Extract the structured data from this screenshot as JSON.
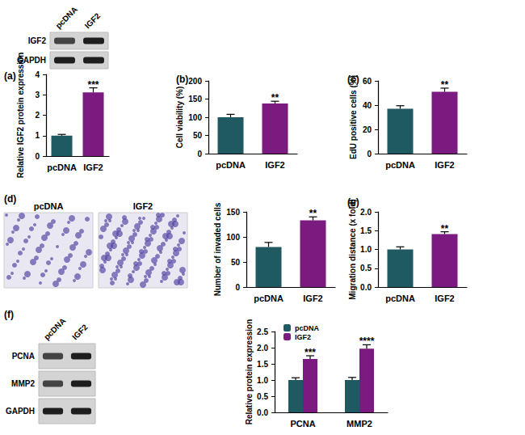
{
  "chart_data": [
    {
      "type": "bar",
      "title": "(a)",
      "ylabel": "Relative IGF2 protein expression",
      "categories": [
        "pcDNA",
        "IGF2"
      ],
      "values": [
        1.0,
        3.12
      ],
      "errors": [
        0.06,
        0.22
      ],
      "colors": [
        "#1f5a63",
        "#7b1b80"
      ],
      "ylim": [
        0,
        4
      ],
      "yticks": [
        0,
        1,
        2,
        3,
        4
      ],
      "annotations": [
        {
          "x": "IGF2",
          "text": "***"
        }
      ],
      "grid": false
    },
    {
      "type": "bar",
      "title": "(b)",
      "ylabel": "Cell viability (%)",
      "categories": [
        "pcDNA",
        "IGF2"
      ],
      "values": [
        100,
        138
      ],
      "errors": [
        8,
        6
      ],
      "colors": [
        "#1f5a63",
        "#7b1b80"
      ],
      "ylim": [
        0,
        200
      ],
      "yticks": [
        0,
        50,
        100,
        150,
        200
      ],
      "annotations": [
        {
          "x": "IGF2",
          "text": "**"
        }
      ],
      "grid": false
    },
    {
      "type": "bar",
      "title": "(c)",
      "ylabel": "EdU positive cells (%)",
      "categories": [
        "pcDNA",
        "IGF2"
      ],
      "values": [
        37,
        51
      ],
      "errors": [
        2.5,
        3
      ],
      "colors": [
        "#1f5a63",
        "#7b1b80"
      ],
      "ylim": [
        0,
        60
      ],
      "yticks": [
        0,
        20,
        40,
        60
      ],
      "annotations": [
        {
          "x": "IGF2",
          "text": "**"
        }
      ],
      "grid": false
    },
    {
      "type": "bar",
      "title": "(d)",
      "ylabel": "Number of invaded cells",
      "categories": [
        "pcDNA",
        "IGF2"
      ],
      "values": [
        80,
        133
      ],
      "errors": [
        9,
        7
      ],
      "colors": [
        "#1f5a63",
        "#7b1b80"
      ],
      "ylim": [
        0,
        150
      ],
      "yticks": [
        0,
        50,
        100,
        150
      ],
      "annotations": [
        {
          "x": "IGF2",
          "text": "**"
        }
      ],
      "grid": false
    },
    {
      "type": "bar",
      "title": "(e)",
      "ylabel": "Migration distance (x fold)",
      "categories": [
        "pcDNA",
        "IGF2"
      ],
      "values": [
        1.0,
        1.41
      ],
      "errors": [
        0.07,
        0.06
      ],
      "colors": [
        "#1f5a63",
        "#7b1b80"
      ],
      "ylim": [
        0,
        2
      ],
      "yticks": [
        {
          "value": 0,
          "label": "0.0"
        },
        0.5,
        {
          "value": 1,
          "label": "1.0"
        },
        1.5,
        {
          "value": 2,
          "label": "2.0"
        }
      ],
      "annotations": [
        {
          "x": "IGF2",
          "text": "**"
        }
      ],
      "grid": false
    },
    {
      "type": "bar",
      "title": "(f)",
      "ylabel": "Relative protein expression",
      "categories": [
        "PCNA",
        "MMP2"
      ],
      "series": [
        {
          "name": "pcDNA",
          "color": "#1f5a63",
          "values": [
            1.0,
            1.0
          ],
          "errors": [
            0.07,
            0.08
          ]
        },
        {
          "name": "IGF2",
          "color": "#7b1b80",
          "values": [
            1.65,
            1.97
          ],
          "errors": [
            0.1,
            0.12
          ]
        }
      ],
      "ylim": [
        0,
        2.5
      ],
      "yticks": [
        {
          "value": 0,
          "label": "0.0"
        },
        0.5,
        {
          "value": 1,
          "label": "1.0"
        },
        1.5,
        {
          "value": 2,
          "label": "2.0"
        },
        2.5
      ],
      "annotations": [
        {
          "x": "PCNA",
          "series": "IGF2",
          "text": "***"
        },
        {
          "x": "MMP2",
          "series": "IGF2",
          "text": "****"
        }
      ],
      "legend": "upper left",
      "grid": false
    }
  ],
  "blots": [
    {
      "lanes": [
        "pcDNA",
        "IGF2"
      ],
      "rows": [
        "IGF2",
        "GAPDH"
      ]
    },
    {
      "lanes": [
        "pcDNA",
        "IGF2"
      ],
      "rows": [
        "PCNA",
        "MMP2",
        "GAPDH"
      ]
    }
  ],
  "micrographs": {
    "labels": [
      "pcDNA",
      "IGF2"
    ]
  }
}
